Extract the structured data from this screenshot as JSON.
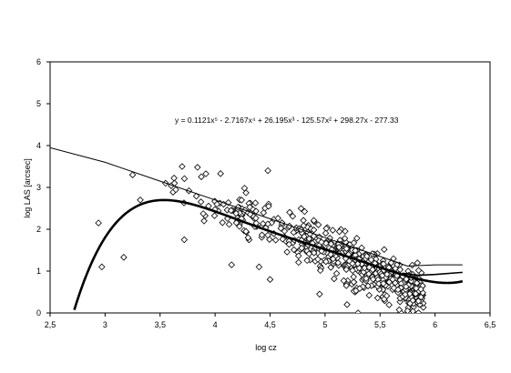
{
  "chart_data": {
    "type": "scatter",
    "title": "",
    "xlabel": "log cz",
    "ylabel": "log LAS  [arcsec]",
    "xlim": [
      2.5,
      6.5
    ],
    "ylim": [
      0,
      6
    ],
    "x_ticks": [
      "2,5",
      "3",
      "3,5",
      "4",
      "4,5",
      "5",
      "5,5",
      "6",
      "6,5"
    ],
    "y_ticks": [
      "0",
      "1",
      "2",
      "3",
      "4",
      "5",
      "6"
    ],
    "grid": false,
    "legend": "none",
    "annotation": "y = 0.1121x⁵ - 2.7167x⁴ + 26.195x³ - 125.57x² + 298.27x - 277.33",
    "fit_coefficients": [
      0.1121,
      -2.7167,
      26.195,
      -125.57,
      298.27,
      -277.33
    ],
    "marker": "open-diamond",
    "points_seed": 7,
    "series": [
      {
        "kind": "scatter",
        "points_sample": [
          [
            2.94,
            2.15
          ],
          [
            2.97,
            1.1
          ],
          [
            3.17,
            1.33
          ],
          [
            3.25,
            3.3
          ],
          [
            3.32,
            2.7
          ],
          [
            3.55,
            3.1
          ],
          [
            3.7,
            3.5
          ],
          [
            3.72,
            1.75
          ],
          [
            3.84,
            3.48
          ],
          [
            3.9,
            2.2
          ],
          [
            4.05,
            3.33
          ],
          [
            4.15,
            1.15
          ],
          [
            4.3,
            1.8
          ],
          [
            4.4,
            1.1
          ],
          [
            4.48,
            3.4
          ],
          [
            4.5,
            0.8
          ],
          [
            4.95,
            0.45
          ],
          [
            5.2,
            0.2
          ],
          [
            5.3,
            0.0
          ],
          [
            5.75,
            0.05
          ]
        ]
      },
      {
        "kind": "line",
        "description_role": "upper-boundary",
        "x": [
          2.5,
          3.0,
          3.5,
          4.0,
          4.5,
          5.0,
          5.5,
          5.75,
          6.0,
          6.25
        ],
        "y": [
          3.95,
          3.6,
          3.15,
          2.7,
          2.25,
          1.8,
          1.35,
          1.12,
          1.15,
          1.15
        ]
      },
      {
        "kind": "line",
        "description_role": "lower-envelope",
        "x": [
          5.7,
          5.85,
          6.0,
          6.25
        ],
        "y": [
          0.95,
          0.9,
          0.92,
          0.97
        ]
      }
    ]
  }
}
